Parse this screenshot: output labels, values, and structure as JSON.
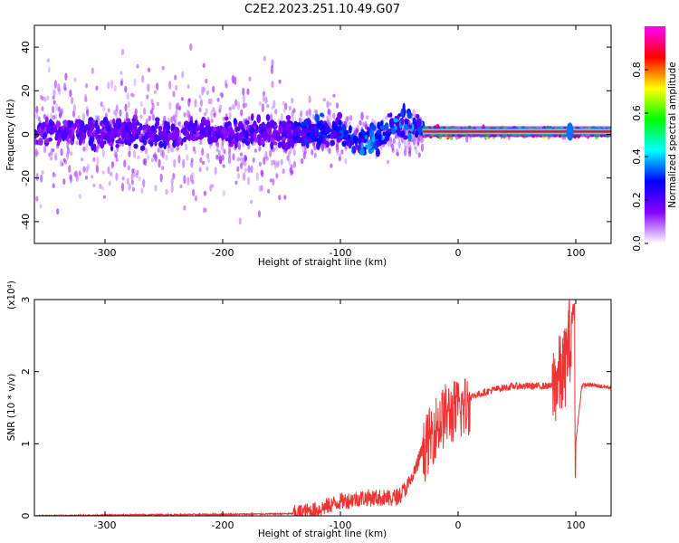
{
  "figure_title": "C2E2.2023.251.10.49.G07",
  "chart_data": [
    {
      "type": "heatmap",
      "xlabel": "Height of straight line (km)",
      "ylabel": "Frequency (Hz)",
      "xlim": [
        -360,
        130
      ],
      "ylim": [
        -50,
        50
      ],
      "xticks": [
        -300,
        -200,
        -100,
        0,
        100
      ],
      "yticks": [
        -40,
        -20,
        0,
        20,
        40
      ],
      "colorbar": {
        "label": "Normalized spectral amplitude",
        "range": [
          0.0,
          1.0
        ],
        "ticks": [
          0.0,
          0.2,
          0.4,
          0.6,
          0.8
        ],
        "colormap": [
          "#ffffff",
          "#8800ff",
          "#0000ff",
          "#00ffff",
          "#00ff00",
          "#ffff00",
          "#ff0000",
          "#ff00ff"
        ]
      },
      "structure": [
        {
          "x_range": [
            -360,
            -140
          ],
          "freq_core_halfwidth_hz": 8,
          "freq_spread_hz": 50,
          "amplitude": 0.05
        },
        {
          "x_range": [
            -140,
            -100
          ],
          "freq_core_halfwidth_hz": 8,
          "freq_spread_hz": 25,
          "amplitude": 0.3
        },
        {
          "x_range": [
            -100,
            -30
          ],
          "freq_core_halfwidth_hz": 8,
          "freq_spread_hz": 15,
          "amplitude": 0.35
        },
        {
          "x_range": [
            -30,
            130
          ],
          "freq_core_halfwidth_hz": 2,
          "freq_spread_hz": 3,
          "amplitude": 0.95
        }
      ],
      "grid": false
    },
    {
      "type": "line",
      "xlabel": "Height of straight line (km)",
      "ylabel": "SNR (10 * v/v)",
      "y_multiplier": "(x10⁴)",
      "xlim": [
        -360,
        130
      ],
      "ylim": [
        0,
        3
      ],
      "xticks": [
        -300,
        -200,
        -100,
        0,
        100
      ],
      "yticks": [
        0,
        1,
        2,
        3
      ],
      "line_color": "#ee3333",
      "series": [
        {
          "x": [
            -360,
            -300,
            -200,
            -140,
            -120,
            -100,
            -80,
            -60,
            -50,
            -40,
            -30,
            -20,
            -10,
            0,
            10,
            20,
            30,
            40,
            50,
            60,
            70,
            80,
            85,
            90,
            95,
            100,
            105,
            110,
            120,
            130
          ],
          "values": [
            0.0,
            0.01,
            0.02,
            0.03,
            0.08,
            0.2,
            0.25,
            0.25,
            0.3,
            0.5,
            0.95,
            1.3,
            1.5,
            1.55,
            1.65,
            1.7,
            1.75,
            1.78,
            1.8,
            1.8,
            1.8,
            1.8,
            1.9,
            2.0,
            2.5,
            1.0,
            1.8,
            1.82,
            1.8,
            1.78
          ]
        }
      ],
      "grid": false
    }
  ]
}
